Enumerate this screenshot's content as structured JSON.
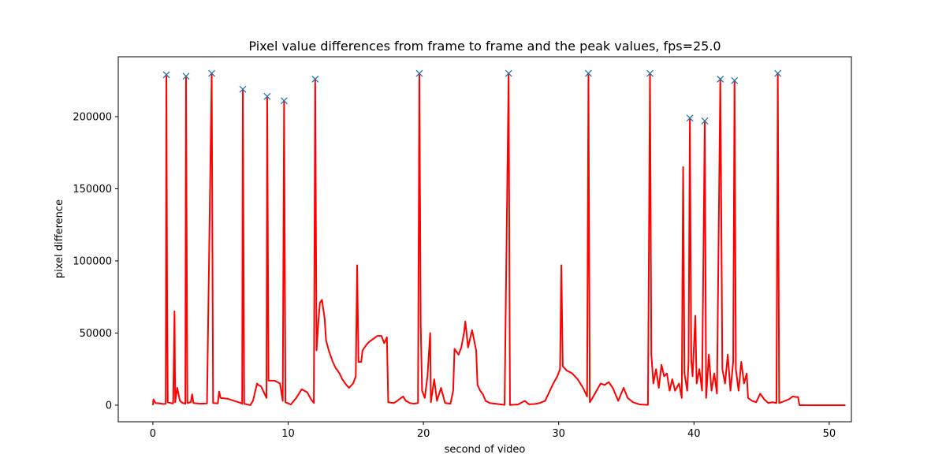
{
  "chart_data": {
    "type": "line",
    "title": "Pixel value differences from frame to frame and the peak values, fps=25.0",
    "xlabel": "second of video",
    "ylabel": "pixel difference",
    "xlim": [
      -2.56,
      51.64
    ],
    "ylim": [
      -11500,
      241500
    ],
    "xticks": [
      0,
      10,
      20,
      30,
      40,
      50
    ],
    "yticks": [
      0,
      50000,
      100000,
      150000,
      200000
    ],
    "line_color": "#ff0000",
    "peak_marker_color": "#1f77b4",
    "grid": false,
    "legend": "none",
    "series": [
      {
        "values": [
          [
            0,
            0
          ],
          [
            0.04,
            4000
          ],
          [
            0.2,
            1500
          ],
          [
            0.5,
            1200
          ],
          [
            0.8,
            800
          ],
          [
            0.95,
            1000
          ],
          [
            1.0,
            229000
          ],
          [
            1.05,
            82000
          ],
          [
            1.1,
            2000
          ],
          [
            1.3,
            1500
          ],
          [
            1.5,
            1200
          ],
          [
            1.6,
            65000
          ],
          [
            1.65,
            2000
          ],
          [
            1.8,
            12000
          ],
          [
            2.0,
            3000
          ],
          [
            2.2,
            1500
          ],
          [
            2.4,
            1000
          ],
          [
            2.45,
            228000
          ],
          [
            2.55,
            1500
          ],
          [
            2.8,
            2000
          ],
          [
            2.9,
            7500
          ],
          [
            3.0,
            1500
          ],
          [
            3.5,
            1000
          ],
          [
            4.0,
            1200
          ],
          [
            4.35,
            230000
          ],
          [
            4.45,
            1500
          ],
          [
            4.8,
            1200
          ],
          [
            4.9,
            9500
          ],
          [
            5.0,
            5000
          ],
          [
            5.5,
            4500
          ],
          [
            6.0,
            3000
          ],
          [
            6.5,
            1500
          ],
          [
            6.6,
            1000
          ],
          [
            6.65,
            219000
          ],
          [
            6.75,
            1000
          ],
          [
            7.2,
            0
          ],
          [
            7.4,
            3000
          ],
          [
            7.6,
            11000
          ],
          [
            7.7,
            15000
          ],
          [
            7.8,
            14000
          ],
          [
            8.0,
            13000
          ],
          [
            8.4,
            5000
          ],
          [
            8.45,
            214000
          ],
          [
            8.55,
            17000
          ],
          [
            9.0,
            17000
          ],
          [
            9.4,
            15000
          ],
          [
            9.6,
            3000
          ],
          [
            9.7,
            211000
          ],
          [
            9.8,
            2000
          ],
          [
            10.2,
            500
          ],
          [
            10.6,
            5000
          ],
          [
            11.0,
            11000
          ],
          [
            11.4,
            9000
          ],
          [
            11.7,
            4000
          ],
          [
            11.9,
            1500
          ],
          [
            12.0,
            226000
          ],
          [
            12.1,
            38000
          ],
          [
            12.25,
            60000
          ],
          [
            12.35,
            71000
          ],
          [
            12.5,
            73000
          ],
          [
            12.7,
            60000
          ],
          [
            12.8,
            45000
          ],
          [
            13.0,
            38000
          ],
          [
            13.3,
            30000
          ],
          [
            13.5,
            26000
          ],
          [
            13.8,
            22000
          ],
          [
            14.0,
            18000
          ],
          [
            14.3,
            14000
          ],
          [
            14.5,
            12000
          ],
          [
            14.8,
            15000
          ],
          [
            15.0,
            20000
          ],
          [
            15.1,
            97000
          ],
          [
            15.2,
            30000
          ],
          [
            15.4,
            30000
          ],
          [
            15.5,
            38000
          ],
          [
            15.8,
            42000
          ],
          [
            16.0,
            44000
          ],
          [
            16.3,
            46000
          ],
          [
            16.6,
            48000
          ],
          [
            16.9,
            48000
          ],
          [
            17.1,
            43000
          ],
          [
            17.3,
            47000
          ],
          [
            17.4,
            2000
          ],
          [
            17.8,
            1500
          ],
          [
            18.0,
            2500
          ],
          [
            18.2,
            4000
          ],
          [
            18.5,
            6000
          ],
          [
            18.7,
            3000
          ],
          [
            19.0,
            1500
          ],
          [
            19.3,
            1000
          ],
          [
            19.6,
            1500
          ],
          [
            19.7,
            230000
          ],
          [
            19.8,
            56000
          ],
          [
            19.9,
            10000
          ],
          [
            20.1,
            5000
          ],
          [
            20.3,
            20000
          ],
          [
            20.5,
            50000
          ],
          [
            20.55,
            2000
          ],
          [
            20.8,
            18000
          ],
          [
            21.0,
            3000
          ],
          [
            21.3,
            12000
          ],
          [
            21.6,
            1500
          ],
          [
            22.0,
            1000
          ],
          [
            22.2,
            10000
          ],
          [
            22.3,
            39000
          ],
          [
            22.6,
            35000
          ],
          [
            22.8,
            40000
          ],
          [
            23.0,
            50000
          ],
          [
            23.1,
            58000
          ],
          [
            23.3,
            40000
          ],
          [
            23.6,
            52000
          ],
          [
            23.9,
            38000
          ],
          [
            24.0,
            14000
          ],
          [
            24.2,
            10000
          ],
          [
            24.4,
            7500
          ],
          [
            24.6,
            3000
          ],
          [
            24.9,
            1500
          ],
          [
            25.5,
            800
          ],
          [
            26.0,
            200
          ],
          [
            26.3,
            230000
          ],
          [
            26.4,
            100
          ],
          [
            27.0,
            500
          ],
          [
            27.5,
            3000
          ],
          [
            27.8,
            600
          ],
          [
            28.2,
            800
          ],
          [
            28.6,
            1500
          ],
          [
            29.0,
            3000
          ],
          [
            29.3,
            9000
          ],
          [
            29.6,
            15000
          ],
          [
            29.9,
            20000
          ],
          [
            30.1,
            25000
          ],
          [
            30.2,
            97000
          ],
          [
            30.3,
            27000
          ],
          [
            30.6,
            24000
          ],
          [
            31.0,
            22000
          ],
          [
            31.4,
            18000
          ],
          [
            31.8,
            12000
          ],
          [
            32.1,
            6000
          ],
          [
            32.2,
            230000
          ],
          [
            32.3,
            2000
          ],
          [
            32.5,
            5000
          ],
          [
            32.8,
            10000
          ],
          [
            33.1,
            15000
          ],
          [
            33.4,
            14000
          ],
          [
            33.7,
            16000
          ],
          [
            34.0,
            12000
          ],
          [
            34.4,
            3000
          ],
          [
            34.8,
            12000
          ],
          [
            35.1,
            5000
          ],
          [
            35.5,
            2000
          ],
          [
            36.0,
            500
          ],
          [
            36.6,
            200
          ],
          [
            36.75,
            230000
          ],
          [
            36.85,
            35000
          ],
          [
            37.0,
            15000
          ],
          [
            37.2,
            25000
          ],
          [
            37.4,
            12000
          ],
          [
            37.6,
            28000
          ],
          [
            37.8,
            20000
          ],
          [
            38.0,
            22000
          ],
          [
            38.2,
            10000
          ],
          [
            38.4,
            18000
          ],
          [
            38.6,
            10000
          ],
          [
            38.9,
            15000
          ],
          [
            39.1,
            5000
          ],
          [
            39.2,
            165000
          ],
          [
            39.3,
            22000
          ],
          [
            39.5,
            10000
          ],
          [
            39.6,
            30000
          ],
          [
            39.7,
            199000
          ],
          [
            39.8,
            31000
          ],
          [
            39.9,
            20000
          ],
          [
            40.1,
            62000
          ],
          [
            40.2,
            15000
          ],
          [
            40.4,
            25000
          ],
          [
            40.6,
            10000
          ],
          [
            40.8,
            197000
          ],
          [
            40.9,
            5000
          ],
          [
            41.1,
            35000
          ],
          [
            41.3,
            10000
          ],
          [
            41.5,
            22000
          ],
          [
            41.7,
            8000
          ],
          [
            41.95,
            226000
          ],
          [
            42.1,
            25000
          ],
          [
            42.3,
            15000
          ],
          [
            42.5,
            35000
          ],
          [
            42.7,
            10000
          ],
          [
            42.9,
            30000
          ],
          [
            43.0,
            225000
          ],
          [
            43.1,
            25000
          ],
          [
            43.3,
            10000
          ],
          [
            43.5,
            30000
          ],
          [
            43.7,
            15000
          ],
          [
            43.9,
            22000
          ],
          [
            44.0,
            5000
          ],
          [
            44.3,
            3000
          ],
          [
            44.6,
            2000
          ],
          [
            44.9,
            8000
          ],
          [
            45.2,
            4000
          ],
          [
            45.5,
            1500
          ],
          [
            45.8,
            2000
          ],
          [
            46.1,
            1500
          ],
          [
            46.2,
            230000
          ],
          [
            46.3,
            1500
          ],
          [
            46.6,
            2500
          ],
          [
            47.0,
            4000
          ],
          [
            47.3,
            6000
          ],
          [
            47.7,
            5500
          ],
          [
            47.8,
            0
          ],
          [
            50.0,
            0
          ],
          [
            51.2,
            0
          ]
        ]
      }
    ],
    "peaks": [
      [
        1.0,
        229000
      ],
      [
        2.45,
        228000
      ],
      [
        4.35,
        230000
      ],
      [
        6.65,
        219000
      ],
      [
        8.45,
        214000
      ],
      [
        9.7,
        211000
      ],
      [
        12.0,
        226000
      ],
      [
        19.7,
        230000
      ],
      [
        26.3,
        230000
      ],
      [
        32.2,
        230000
      ],
      [
        36.75,
        230000
      ],
      [
        39.7,
        199000
      ],
      [
        40.8,
        197000
      ],
      [
        41.95,
        226000
      ],
      [
        43.0,
        225000
      ],
      [
        46.2,
        230000
      ]
    ]
  }
}
